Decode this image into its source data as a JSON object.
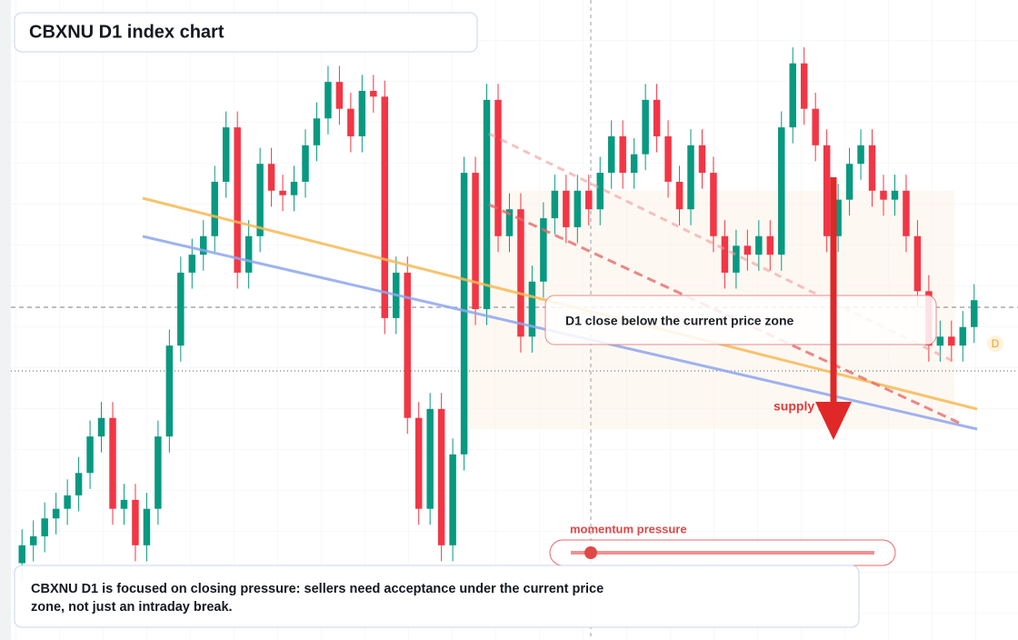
{
  "chart_data": {
    "type": "candlestick",
    "title": "CBXNU D1 index chart",
    "up_color": "#089981",
    "down_color": "#f23645",
    "ylim": [
      0,
      100
    ],
    "open": [
      12.0,
      14.8,
      16.2,
      19.0,
      20.5,
      22.6,
      26.1,
      31.8,
      34.7,
      20.5,
      21.9,
      14.8,
      20.5,
      31.8,
      46.0,
      57.4,
      60.2,
      63.1,
      71.6,
      80.1,
      57.4,
      63.1,
      74.4,
      70.2,
      69.5,
      71.6,
      77.3,
      81.5,
      87.2,
      83.0,
      78.7,
      85.8,
      84.9,
      50.3,
      57.4,
      34.7,
      20.5,
      36.1,
      14.8,
      29.0,
      73.0,
      51.7,
      84.4,
      63.1,
      67.3,
      47.4,
      56.0,
      65.9,
      70.2,
      64.5,
      70.2,
      67.3,
      73.0,
      78.7,
      73.0,
      75.9,
      84.4,
      78.7,
      71.6,
      67.3,
      77.3,
      73.0,
      63.1,
      57.4,
      61.6,
      60.2,
      63.1,
      60.2,
      80.1,
      90.1,
      83.0,
      77.3,
      63.1,
      68.8,
      74.4,
      77.3,
      70.2,
      68.8,
      70.2,
      63.1,
      54.5,
      46.0,
      47.4,
      46.0,
      48.9
    ],
    "high": [
      17.3,
      18.7,
      21.5,
      23.0,
      25.1,
      28.6,
      34.3,
      37.2,
      37.2,
      24.4,
      24.4,
      23.0,
      34.3,
      48.5,
      59.9,
      62.7,
      65.6,
      74.1,
      82.6,
      82.6,
      65.6,
      76.9,
      76.9,
      72.7,
      74.1,
      79.8,
      84.0,
      89.7,
      89.7,
      85.5,
      88.3,
      88.3,
      87.4,
      59.9,
      59.9,
      37.2,
      38.6,
      38.6,
      31.5,
      75.5,
      75.5,
      86.9,
      86.9,
      69.8,
      69.8,
      58.5,
      68.4,
      72.7,
      72.7,
      72.7,
      72.7,
      75.5,
      81.2,
      81.2,
      78.4,
      86.9,
      86.9,
      81.2,
      74.1,
      79.8,
      79.8,
      75.5,
      65.6,
      64.1,
      64.1,
      65.6,
      65.6,
      82.6,
      92.6,
      92.6,
      85.5,
      79.8,
      71.3,
      76.9,
      79.8,
      79.8,
      72.7,
      72.7,
      72.7,
      65.6,
      57.0,
      49.9,
      49.9,
      51.4,
      55.6
    ],
    "low": [
      9.5,
      12.3,
      13.7,
      16.5,
      18.0,
      20.1,
      23.6,
      29.3,
      18.0,
      18.0,
      12.3,
      12.3,
      18.0,
      29.3,
      43.5,
      54.9,
      57.7,
      60.6,
      69.1,
      54.9,
      54.9,
      60.6,
      67.7,
      67.0,
      67.0,
      69.1,
      74.8,
      79.0,
      80.5,
      76.2,
      76.2,
      82.4,
      47.8,
      47.8,
      32.2,
      18.0,
      18.0,
      12.3,
      12.3,
      26.5,
      49.2,
      49.2,
      60.6,
      60.6,
      44.9,
      44.9,
      53.5,
      63.4,
      62.0,
      62.0,
      64.8,
      64.8,
      70.5,
      70.5,
      70.5,
      73.4,
      76.2,
      69.1,
      64.8,
      64.8,
      70.5,
      60.6,
      54.9,
      54.9,
      57.7,
      57.7,
      57.7,
      57.7,
      77.6,
      80.5,
      74.8,
      60.6,
      60.6,
      66.3,
      71.9,
      67.7,
      66.3,
      66.3,
      60.6,
      52.0,
      43.5,
      43.5,
      43.5,
      43.5,
      46.4
    ],
    "close": [
      14.8,
      16.2,
      19.0,
      20.5,
      22.6,
      26.1,
      31.8,
      34.7,
      20.5,
      21.9,
      14.8,
      20.5,
      31.8,
      46.0,
      57.4,
      60.2,
      63.1,
      71.6,
      80.1,
      57.4,
      63.1,
      74.4,
      70.2,
      69.5,
      71.6,
      77.3,
      81.5,
      87.2,
      83.0,
      78.7,
      85.8,
      84.9,
      50.3,
      57.4,
      34.7,
      20.5,
      36.1,
      14.8,
      29.0,
      73.0,
      51.7,
      84.4,
      63.1,
      67.3,
      47.4,
      56.0,
      65.9,
      70.2,
      64.5,
      70.2,
      67.3,
      73.0,
      78.7,
      73.0,
      75.9,
      84.4,
      78.7,
      71.6,
      67.3,
      77.3,
      73.0,
      63.1,
      57.4,
      61.6,
      60.2,
      63.1,
      60.2,
      80.1,
      90.1,
      83.0,
      77.3,
      63.1,
      68.8,
      74.4,
      77.3,
      70.2,
      68.8,
      70.2,
      63.1,
      54.5,
      46.0,
      47.4,
      46.0,
      48.9,
      53.1
    ],
    "annotations": {
      "callout": "D1 close below the current price zone",
      "zone_label": "supply zone",
      "slider_label": "momentum pressure",
      "note": [
        "CBXNU D1 is focused on closing pressure: sellers need acceptance under the current price",
        "zone, not just an intraday break."
      ],
      "badge": "D"
    }
  }
}
